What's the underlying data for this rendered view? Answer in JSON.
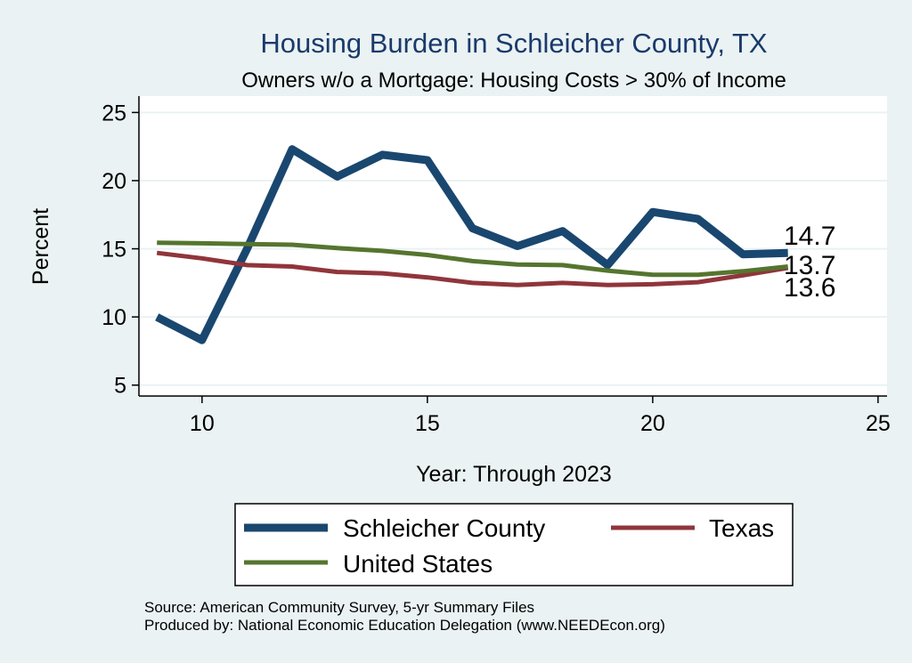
{
  "colors": {
    "background": "#eaf2f3",
    "plot_background": "#ffffff",
    "gridline": "#eaf2f3",
    "title": "#1a3a6b",
    "text": "#000000",
    "county": "#1a476f",
    "texas": "#90353b",
    "us": "#55752f"
  },
  "chart_data": {
    "type": "line",
    "title": "Housing Burden in Schleicher County, TX",
    "subtitle": "Owners w/o a Mortgage: Housing Costs > 30% of Income",
    "xlabel": "Year: Through 2023",
    "ylabel": "Percent",
    "xlim": [
      8.6,
      25.2
    ],
    "ylim": [
      4.2,
      26.2
    ],
    "x_ticks": [
      10,
      15,
      20,
      25
    ],
    "y_ticks": [
      5,
      10,
      15,
      20,
      25
    ],
    "grid": true,
    "series": [
      {
        "name": "Schleicher County",
        "key": "county",
        "x": [
          9,
          10,
          11,
          12,
          13,
          14,
          15,
          16,
          17,
          18,
          19,
          20,
          21,
          22,
          23
        ],
        "values": [
          10.0,
          8.3,
          15.0,
          22.3,
          20.3,
          21.9,
          21.5,
          16.5,
          15.2,
          16.3,
          13.8,
          17.7,
          17.2,
          14.6,
          14.7
        ],
        "end_label": "14.7"
      },
      {
        "name": "Texas",
        "key": "texas",
        "x": [
          9,
          10,
          11,
          12,
          13,
          14,
          15,
          16,
          17,
          18,
          19,
          20,
          21,
          22,
          23
        ],
        "values": [
          14.7,
          14.3,
          13.8,
          13.7,
          13.3,
          13.2,
          12.9,
          12.5,
          12.35,
          12.5,
          12.35,
          12.4,
          12.55,
          13.05,
          13.6
        ],
        "end_label": "13.6"
      },
      {
        "name": "United States",
        "key": "us",
        "x": [
          9,
          10,
          11,
          12,
          13,
          14,
          15,
          16,
          17,
          18,
          19,
          20,
          21,
          22,
          23
        ],
        "values": [
          15.45,
          15.4,
          15.35,
          15.3,
          15.05,
          14.85,
          14.55,
          14.1,
          13.85,
          13.8,
          13.4,
          13.1,
          13.1,
          13.35,
          13.7
        ],
        "end_label": "13.7"
      }
    ],
    "legend": {
      "position": "bottom",
      "entries": [
        "Schleicher County",
        "Texas",
        "United States"
      ]
    }
  },
  "source_note": "Source: American Community Survey, 5-yr Summary Files",
  "producer_note": "Produced by: National Economic Education Delegation (www.NEEDEcon.org)"
}
